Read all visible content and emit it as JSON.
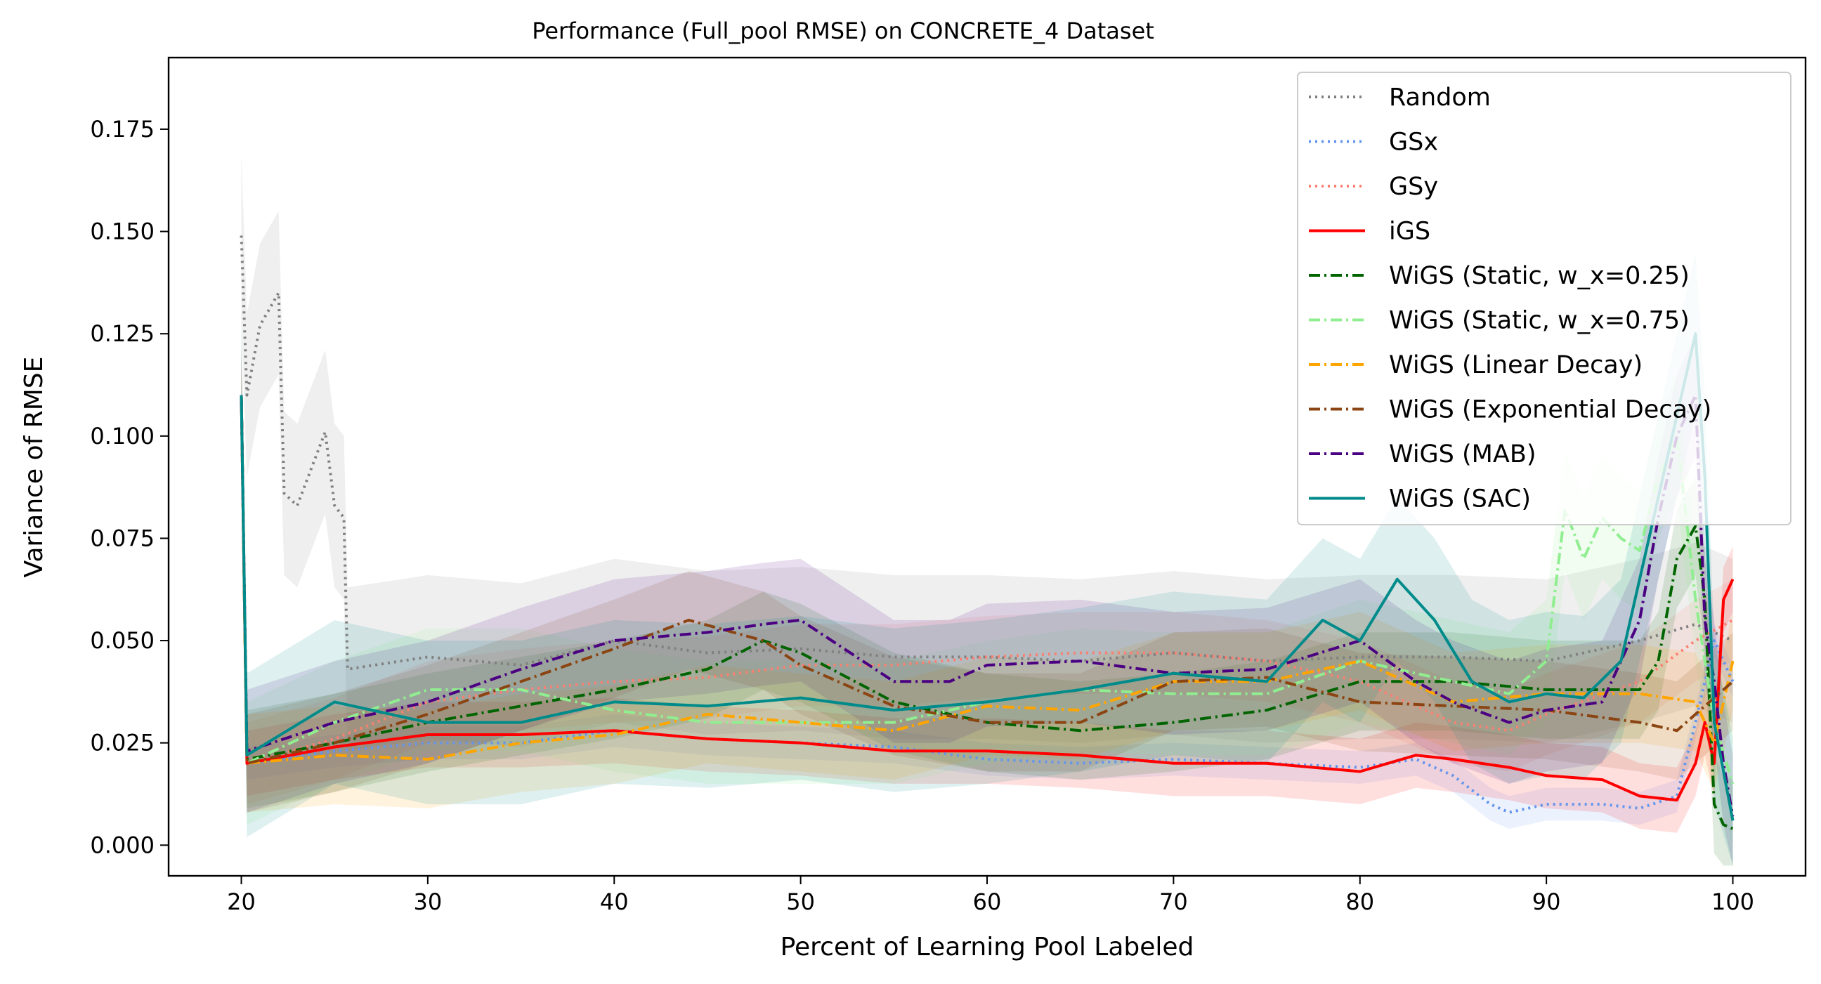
{
  "chart_data": {
    "type": "line",
    "title": "Performance (Full_pool RMSE) on CONCRETE_4 Dataset",
    "xlabel": "Percent of Learning Pool Labeled",
    "ylabel": "Variance of RMSE",
    "xlim": [
      16.1,
      103.9
    ],
    "ylim": [
      -0.0075,
      0.1925
    ],
    "xticks": [
      20,
      30,
      40,
      50,
      60,
      70,
      80,
      90,
      100
    ],
    "xtick_labels": [
      "20",
      "30",
      "40",
      "50",
      "60",
      "70",
      "80",
      "90",
      "100"
    ],
    "yticks": [
      0.0,
      0.025,
      0.05,
      0.075,
      0.1,
      0.125,
      0.15,
      0.175
    ],
    "ytick_labels": [
      "0.000",
      "0.025",
      "0.050",
      "0.075",
      "0.100",
      "0.125",
      "0.150",
      "0.175"
    ],
    "grid": false,
    "legend_position": "top-right",
    "series": [
      {
        "name": "Random",
        "color": "#808080",
        "dash": "dotted",
        "points": [
          [
            20,
            0.149
          ],
          [
            20.3,
            0.11
          ],
          [
            21,
            0.127
          ],
          [
            22,
            0.135
          ],
          [
            22.3,
            0.086
          ],
          [
            23,
            0.083
          ],
          [
            24,
            0.095
          ],
          [
            24.5,
            0.101
          ],
          [
            25,
            0.083
          ],
          [
            25.5,
            0.08
          ],
          [
            25.7,
            0.043
          ],
          [
            30,
            0.046
          ],
          [
            35,
            0.044
          ],
          [
            40,
            0.05
          ],
          [
            45,
            0.047
          ],
          [
            50,
            0.048
          ],
          [
            55,
            0.046
          ],
          [
            60,
            0.046
          ],
          [
            65,
            0.045
          ],
          [
            70,
            0.047
          ],
          [
            75,
            0.045
          ],
          [
            80,
            0.046
          ],
          [
            85,
            0.046
          ],
          [
            90,
            0.045
          ],
          [
            95,
            0.05
          ],
          [
            98,
            0.054
          ],
          [
            100,
            0.05
          ]
        ],
        "band": 0.02
      },
      {
        "name": "GSx",
        "color": "#6495ED",
        "dash": "dotted",
        "points": [
          [
            20,
            0.11
          ],
          [
            20.3,
            0.02
          ],
          [
            25,
            0.023
          ],
          [
            30,
            0.025
          ],
          [
            35,
            0.025
          ],
          [
            40,
            0.028
          ],
          [
            45,
            0.026
          ],
          [
            50,
            0.025
          ],
          [
            55,
            0.024
          ],
          [
            60,
            0.021
          ],
          [
            65,
            0.02
          ],
          [
            70,
            0.021
          ],
          [
            75,
            0.02
          ],
          [
            80,
            0.019
          ],
          [
            83,
            0.021
          ],
          [
            85,
            0.017
          ],
          [
            87,
            0.01
          ],
          [
            88,
            0.008
          ],
          [
            90,
            0.01
          ],
          [
            93,
            0.01
          ],
          [
            95,
            0.009
          ],
          [
            97,
            0.012
          ],
          [
            98,
            0.03
          ],
          [
            99,
            0.05
          ],
          [
            100,
            0.04
          ]
        ],
        "band": 0.004
      },
      {
        "name": "GSy",
        "color": "#FA8072",
        "dash": "dotted",
        "points": [
          [
            20,
            0.11
          ],
          [
            20.3,
            0.02
          ],
          [
            25,
            0.026
          ],
          [
            30,
            0.035
          ],
          [
            35,
            0.038
          ],
          [
            40,
            0.04
          ],
          [
            45,
            0.041
          ],
          [
            50,
            0.044
          ],
          [
            55,
            0.044
          ],
          [
            60,
            0.046
          ],
          [
            65,
            0.047
          ],
          [
            70,
            0.047
          ],
          [
            75,
            0.045
          ],
          [
            80,
            0.04
          ],
          [
            85,
            0.03
          ],
          [
            88,
            0.028
          ],
          [
            90,
            0.032
          ],
          [
            95,
            0.04
          ],
          [
            98,
            0.05
          ],
          [
            100,
            0.055
          ]
        ],
        "band": 0.01
      },
      {
        "name": "iGS",
        "color": "#FF0000",
        "dash": "solid",
        "points": [
          [
            20,
            0.11
          ],
          [
            20.3,
            0.02
          ],
          [
            25,
            0.024
          ],
          [
            30,
            0.027
          ],
          [
            35,
            0.027
          ],
          [
            40,
            0.028
          ],
          [
            45,
            0.026
          ],
          [
            50,
            0.025
          ],
          [
            55,
            0.023
          ],
          [
            60,
            0.023
          ],
          [
            65,
            0.022
          ],
          [
            70,
            0.02
          ],
          [
            75,
            0.02
          ],
          [
            80,
            0.018
          ],
          [
            83,
            0.022
          ],
          [
            85,
            0.021
          ],
          [
            88,
            0.019
          ],
          [
            90,
            0.017
          ],
          [
            93,
            0.016
          ],
          [
            95,
            0.012
          ],
          [
            97,
            0.011
          ],
          [
            98,
            0.02
          ],
          [
            98.5,
            0.03
          ],
          [
            99,
            0.02
          ],
          [
            99.5,
            0.06
          ],
          [
            100,
            0.065
          ]
        ],
        "band": 0.008
      },
      {
        "name": "WiGS (Static, w_x=0.25)",
        "color": "#006400",
        "dash": "dashdot",
        "points": [
          [
            20,
            0.11
          ],
          [
            20.3,
            0.021
          ],
          [
            25,
            0.025
          ],
          [
            30,
            0.03
          ],
          [
            35,
            0.034
          ],
          [
            40,
            0.038
          ],
          [
            45,
            0.043
          ],
          [
            48,
            0.05
          ],
          [
            50,
            0.047
          ],
          [
            55,
            0.035
          ],
          [
            60,
            0.03
          ],
          [
            65,
            0.028
          ],
          [
            70,
            0.03
          ],
          [
            75,
            0.033
          ],
          [
            80,
            0.04
          ],
          [
            85,
            0.04
          ],
          [
            90,
            0.038
          ],
          [
            95,
            0.038
          ],
          [
            96,
            0.045
          ],
          [
            97,
            0.07
          ],
          [
            98,
            0.078
          ],
          [
            98.5,
            0.06
          ],
          [
            99,
            0.01
          ],
          [
            99.5,
            0.005
          ],
          [
            100,
            0.004
          ]
        ],
        "band": 0.012
      },
      {
        "name": "WiGS (Static, w_x=0.75)",
        "color": "#90EE90",
        "dash": "dashdot",
        "points": [
          [
            20,
            0.11
          ],
          [
            20.3,
            0.02
          ],
          [
            25,
            0.03
          ],
          [
            30,
            0.038
          ],
          [
            35,
            0.038
          ],
          [
            40,
            0.033
          ],
          [
            45,
            0.03
          ],
          [
            50,
            0.03
          ],
          [
            55,
            0.03
          ],
          [
            60,
            0.035
          ],
          [
            65,
            0.038
          ],
          [
            70,
            0.037
          ],
          [
            75,
            0.037
          ],
          [
            80,
            0.045
          ],
          [
            85,
            0.04
          ],
          [
            88,
            0.037
          ],
          [
            90,
            0.045
          ],
          [
            91,
            0.082
          ],
          [
            92,
            0.07
          ],
          [
            93,
            0.08
          ],
          [
            94,
            0.075
          ],
          [
            95,
            0.072
          ],
          [
            96,
            0.09
          ],
          [
            97,
            0.1
          ],
          [
            98,
            0.06
          ],
          [
            99,
            0.03
          ],
          [
            100,
            0.015
          ]
        ],
        "band": 0.015
      },
      {
        "name": "WiGS (Linear Decay)",
        "color": "#FFA500",
        "dash": "dashdot",
        "points": [
          [
            20,
            0.11
          ],
          [
            20.3,
            0.02
          ],
          [
            25,
            0.022
          ],
          [
            30,
            0.021
          ],
          [
            35,
            0.025
          ],
          [
            40,
            0.027
          ],
          [
            45,
            0.032
          ],
          [
            50,
            0.03
          ],
          [
            55,
            0.028
          ],
          [
            60,
            0.034
          ],
          [
            65,
            0.033
          ],
          [
            70,
            0.04
          ],
          [
            75,
            0.04
          ],
          [
            80,
            0.045
          ],
          [
            85,
            0.035
          ],
          [
            90,
            0.037
          ],
          [
            95,
            0.037
          ],
          [
            98,
            0.035
          ],
          [
            99,
            0.025
          ],
          [
            100,
            0.045
          ]
        ],
        "band": 0.012
      },
      {
        "name": "WiGS (Exponential Decay)",
        "color": "#8B4513",
        "dash": "dashdot",
        "points": [
          [
            20,
            0.11
          ],
          [
            20.3,
            0.02
          ],
          [
            25,
            0.025
          ],
          [
            30,
            0.032
          ],
          [
            35,
            0.04
          ],
          [
            40,
            0.048
          ],
          [
            44,
            0.055
          ],
          [
            48,
            0.05
          ],
          [
            50,
            0.044
          ],
          [
            55,
            0.034
          ],
          [
            60,
            0.03
          ],
          [
            65,
            0.03
          ],
          [
            70,
            0.04
          ],
          [
            75,
            0.041
          ],
          [
            80,
            0.035
          ],
          [
            85,
            0.034
          ],
          [
            90,
            0.033
          ],
          [
            95,
            0.03
          ],
          [
            97,
            0.028
          ],
          [
            98,
            0.032
          ],
          [
            100,
            0.04
          ]
        ],
        "band": 0.012
      },
      {
        "name": "WiGS (MAB)",
        "color": "#4B0082",
        "dash": "dashdot",
        "points": [
          [
            20,
            0.11
          ],
          [
            20.3,
            0.023
          ],
          [
            25,
            0.03
          ],
          [
            30,
            0.035
          ],
          [
            35,
            0.043
          ],
          [
            40,
            0.05
          ],
          [
            45,
            0.052
          ],
          [
            48,
            0.054
          ],
          [
            50,
            0.055
          ],
          [
            55,
            0.04
          ],
          [
            58,
            0.04
          ],
          [
            60,
            0.044
          ],
          [
            65,
            0.045
          ],
          [
            70,
            0.042
          ],
          [
            75,
            0.043
          ],
          [
            80,
            0.05
          ],
          [
            83,
            0.04
          ],
          [
            85,
            0.035
          ],
          [
            88,
            0.03
          ],
          [
            90,
            0.033
          ],
          [
            93,
            0.035
          ],
          [
            95,
            0.055
          ],
          [
            96,
            0.08
          ],
          [
            97,
            0.1
          ],
          [
            98,
            0.11
          ],
          [
            98.5,
            0.055
          ],
          [
            99,
            0.04
          ],
          [
            99.5,
            0.02
          ],
          [
            100,
            0.007
          ]
        ],
        "band": 0.015
      },
      {
        "name": "WiGS (SAC)",
        "color": "#008B8B",
        "dash": "solid",
        "points": [
          [
            20,
            0.11
          ],
          [
            20.3,
            0.022
          ],
          [
            25,
            0.035
          ],
          [
            30,
            0.03
          ],
          [
            35,
            0.03
          ],
          [
            40,
            0.035
          ],
          [
            45,
            0.034
          ],
          [
            50,
            0.036
          ],
          [
            55,
            0.033
          ],
          [
            60,
            0.035
          ],
          [
            65,
            0.038
          ],
          [
            70,
            0.042
          ],
          [
            75,
            0.04
          ],
          [
            78,
            0.055
          ],
          [
            80,
            0.05
          ],
          [
            82,
            0.065
          ],
          [
            84,
            0.055
          ],
          [
            86,
            0.04
          ],
          [
            88,
            0.035
          ],
          [
            90,
            0.037
          ],
          [
            92,
            0.036
          ],
          [
            94,
            0.045
          ],
          [
            96,
            0.085
          ],
          [
            98,
            0.125
          ],
          [
            98.5,
            0.09
          ],
          [
            99,
            0.03
          ],
          [
            100,
            0.006
          ]
        ],
        "band": 0.02
      }
    ]
  }
}
